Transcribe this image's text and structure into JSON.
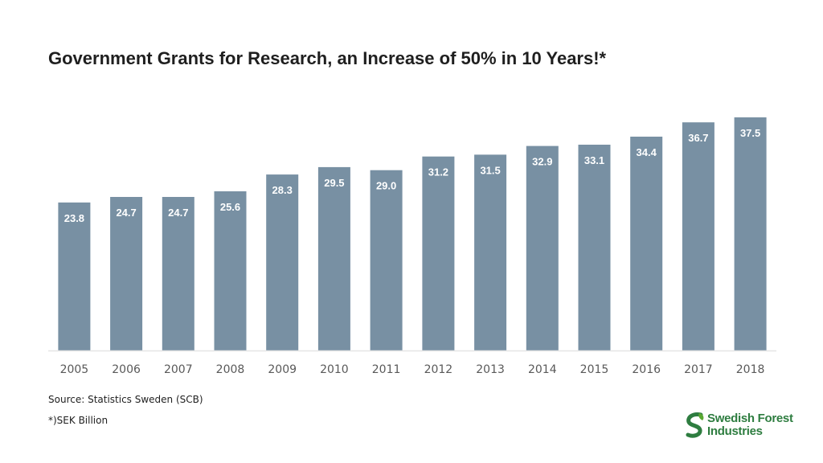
{
  "title": "Government Grants for Research, an Increase of 50% in 10 Years!*",
  "footnotes": {
    "source": "Source: Statistics Sweden (SCB)",
    "unit": "*)SEK Billion"
  },
  "logo": {
    "line1": "Swedish Forest",
    "line2": "Industries",
    "color": "#2e7d40",
    "icon": "leaf-s-icon"
  },
  "chart_data": {
    "type": "bar",
    "categories": [
      "2005",
      "2006",
      "2007",
      "2008",
      "2009",
      "2010",
      "2011",
      "2012",
      "2013",
      "2014",
      "2015",
      "2016",
      "2017",
      "2018"
    ],
    "values": [
      23.8,
      24.7,
      24.7,
      25.6,
      28.3,
      29.5,
      29.0,
      31.2,
      31.5,
      32.9,
      33.1,
      34.4,
      36.7,
      37.5
    ],
    "data_labels": [
      "23.8",
      "24.7",
      "24.7",
      "25.6",
      "28.3",
      "29.5",
      "29.0",
      "31.2",
      "31.5",
      "32.9",
      "33.1",
      "34.4",
      "36.7",
      "37.5"
    ],
    "bar_color": "#7890a3",
    "label_color": "#ffffff",
    "ylim": [
      0,
      37.5
    ],
    "grid": false,
    "legend": "none"
  }
}
